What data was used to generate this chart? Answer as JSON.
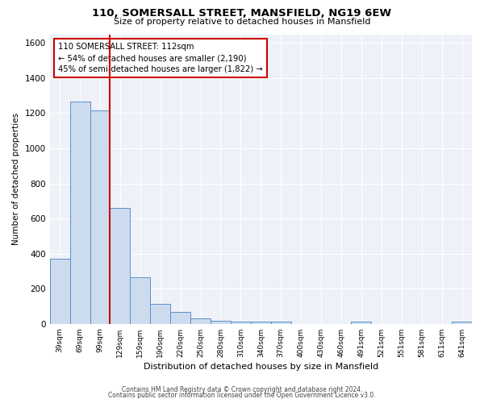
{
  "title": "110, SOMERSALL STREET, MANSFIELD, NG19 6EW",
  "subtitle": "Size of property relative to detached houses in Mansfield",
  "xlabel": "Distribution of detached houses by size in Mansfield",
  "ylabel": "Number of detached properties",
  "categories": [
    "39sqm",
    "69sqm",
    "99sqm",
    "129sqm",
    "159sqm",
    "190sqm",
    "220sqm",
    "250sqm",
    "280sqm",
    "310sqm",
    "340sqm",
    "370sqm",
    "400sqm",
    "430sqm",
    "460sqm",
    "491sqm",
    "521sqm",
    "551sqm",
    "581sqm",
    "611sqm",
    "641sqm"
  ],
  "values": [
    370,
    1265,
    1215,
    660,
    265,
    113,
    68,
    33,
    18,
    13,
    12,
    12,
    0,
    0,
    0,
    12,
    0,
    0,
    0,
    0,
    12
  ],
  "bar_color": "#ccdcee",
  "bar_edge_color": "#5b8fc9",
  "vline_color": "#cc0000",
  "vline_x_index": 2.5,
  "annotation_title": "110 SOMERSALL STREET: 112sqm",
  "annotation_line1": "← 54% of detached houses are smaller (2,190)",
  "annotation_line2": "45% of semi-detached houses are larger (1,822) →",
  "annotation_box_facecolor": "#ffffff",
  "annotation_box_edgecolor": "#cc0000",
  "ylim": [
    0,
    1650
  ],
  "yticks": [
    0,
    200,
    400,
    600,
    800,
    1000,
    1200,
    1400,
    1600
  ],
  "footer1": "Contains HM Land Registry data © Crown copyright and database right 2024.",
  "footer2": "Contains public sector information licensed under the Open Government Licence v3.0.",
  "background_color": "#ffffff",
  "plot_background_color": "#eef2f8",
  "grid_color": "#ffffff",
  "title_fontsize": 9.5,
  "subtitle_fontsize": 8,
  "ylabel_fontsize": 7.5,
  "xlabel_fontsize": 8,
  "ytick_fontsize": 7.5,
  "xtick_fontsize": 6.5
}
